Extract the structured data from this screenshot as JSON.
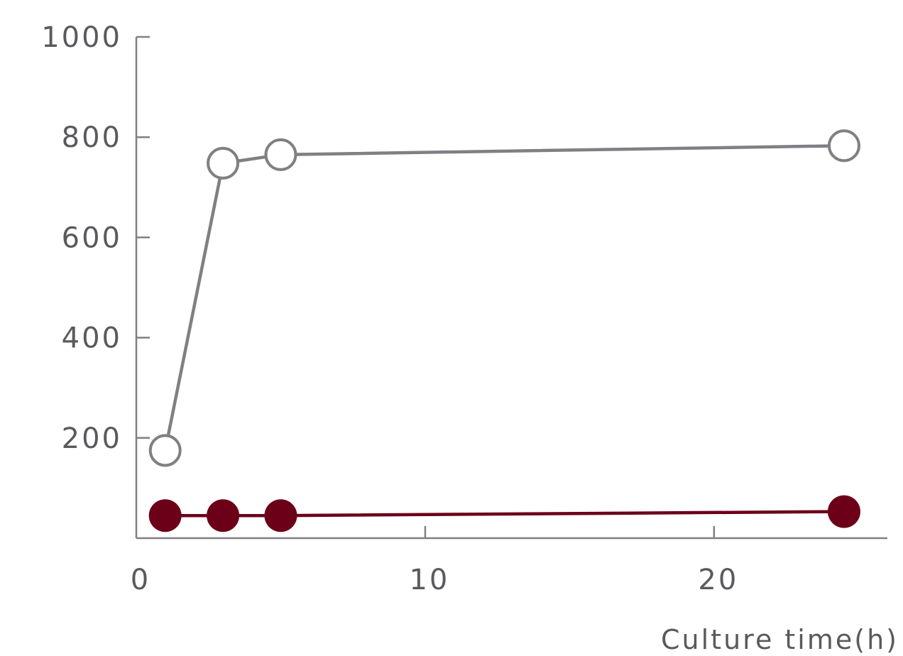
{
  "chart_data": {
    "type": "line",
    "title": "",
    "xlabel": "Culture time(h)",
    "ylabel": "",
    "xlim": [
      0,
      26
    ],
    "ylim": [
      0,
      1000
    ],
    "x_ticks": [
      0,
      10,
      20
    ],
    "y_ticks": [
      200,
      400,
      600,
      800,
      1000
    ],
    "grid": false,
    "legend": "none",
    "series": [
      {
        "x": [
          1,
          3,
          5,
          24.5
        ],
        "values": [
          175,
          748,
          765,
          783
        ],
        "marker": "open-circle",
        "color": "#808084"
      },
      {
        "x": [
          1,
          3,
          5,
          24.5
        ],
        "values": [
          45,
          45,
          45,
          53
        ],
        "marker": "filled-circle",
        "color": "#6b0018"
      }
    ],
    "axis_color": "#808084",
    "text_color": "#5a5a5e"
  }
}
